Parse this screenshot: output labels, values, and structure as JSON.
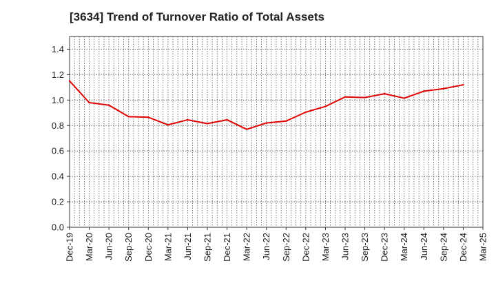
{
  "chart_data": {
    "type": "line",
    "title": "[3634]  Trend of Turnover Ratio of Total Assets",
    "xlabel": "",
    "ylabel": "",
    "ylim": [
      0,
      1.5
    ],
    "yticks": [
      "0.0",
      "0.2",
      "0.4",
      "0.6",
      "0.8",
      "1.0",
      "1.2",
      "1.4"
    ],
    "xtick_labels": [
      "Dec-19",
      "Mar-20",
      "Jun-20",
      "Sep-20",
      "Dec-20",
      "Mar-21",
      "Jun-21",
      "Sep-21",
      "Dec-21",
      "Mar-22",
      "Jun-22",
      "Sep-22",
      "Dec-22",
      "Mar-23",
      "Jun-23",
      "Sep-23",
      "Dec-23",
      "Mar-24",
      "Jun-24",
      "Sep-24",
      "Dec-24",
      "Mar-25"
    ],
    "grid": true,
    "series": [
      {
        "color": "#e00000",
        "x": [
          "Dec-19",
          "Mar-20",
          "Jun-20",
          "Sep-20",
          "Dec-20",
          "Mar-21",
          "Jun-21",
          "Sep-21",
          "Dec-21",
          "Mar-22",
          "Jun-22",
          "Sep-22",
          "Dec-22",
          "Mar-23",
          "Jun-23",
          "Sep-23",
          "Dec-23",
          "Mar-24",
          "Jun-24",
          "Sep-24",
          "Dec-24"
        ],
        "values": [
          1.15,
          0.98,
          0.96,
          0.87,
          0.865,
          0.805,
          0.845,
          0.815,
          0.845,
          0.77,
          0.82,
          0.835,
          0.905,
          0.95,
          1.025,
          1.02,
          1.05,
          1.015,
          1.07,
          1.09,
          1.12
        ]
      }
    ]
  }
}
